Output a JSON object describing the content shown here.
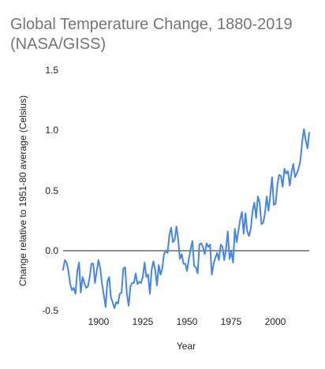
{
  "chart_data": {
    "type": "line",
    "title_line1": "Global Temperature Change, 1880-2019",
    "title_line2": "(NASA/GISS)",
    "xlabel": "Year",
    "ylabel": "Change relative to 1951-80 average (Celsius)",
    "xlim": [
      1880,
      2019
    ],
    "ylim": [
      -0.5,
      1.5
    ],
    "x_ticks": [
      "1900",
      "1925",
      "1950",
      "1975",
      "2000"
    ],
    "y_ticks": [
      "-0.5",
      "0.0",
      "0.5",
      "1.0",
      "1.5"
    ],
    "grid": false,
    "legend": "none",
    "series_color": "#4285F4",
    "series": [
      {
        "x": [
          1880,
          1881,
          1882,
          1883,
          1884,
          1885,
          1886,
          1887,
          1888,
          1889,
          1890,
          1891,
          1892,
          1893,
          1894,
          1895,
          1896,
          1897,
          1898,
          1899,
          1900,
          1901,
          1902,
          1903,
          1904,
          1905,
          1906,
          1907,
          1908,
          1909,
          1910,
          1911,
          1912,
          1913,
          1914,
          1915,
          1916,
          1917,
          1918,
          1919,
          1920,
          1921,
          1922,
          1923,
          1924,
          1925,
          1926,
          1927,
          1928,
          1929,
          1930,
          1931,
          1932,
          1933,
          1934,
          1935,
          1936,
          1937,
          1938,
          1939,
          1940,
          1941,
          1942,
          1943,
          1944,
          1945,
          1946,
          1947,
          1948,
          1949,
          1950,
          1951,
          1952,
          1953,
          1954,
          1955,
          1956,
          1957,
          1958,
          1959,
          1960,
          1961,
          1962,
          1963,
          1964,
          1965,
          1966,
          1967,
          1968,
          1969,
          1970,
          1971,
          1972,
          1973,
          1974,
          1975,
          1976,
          1977,
          1978,
          1979,
          1980,
          1981,
          1982,
          1983,
          1984,
          1985,
          1986,
          1987,
          1988,
          1989,
          1990,
          1991,
          1992,
          1993,
          1994,
          1995,
          1996,
          1997,
          1998,
          1999,
          2000,
          2001,
          2002,
          2003,
          2004,
          2005,
          2006,
          2007,
          2008,
          2009,
          2010,
          2011,
          2012,
          2013,
          2014,
          2015,
          2016,
          2017,
          2018,
          2019
        ],
        "values": [
          -0.16,
          -0.08,
          -0.1,
          -0.17,
          -0.28,
          -0.33,
          -0.31,
          -0.36,
          -0.17,
          -0.1,
          -0.35,
          -0.22,
          -0.27,
          -0.31,
          -0.3,
          -0.22,
          -0.11,
          -0.11,
          -0.27,
          -0.17,
          -0.08,
          -0.15,
          -0.28,
          -0.37,
          -0.47,
          -0.26,
          -0.22,
          -0.39,
          -0.43,
          -0.48,
          -0.43,
          -0.44,
          -0.36,
          -0.35,
          -0.15,
          -0.14,
          -0.36,
          -0.46,
          -0.3,
          -0.27,
          -0.27,
          -0.19,
          -0.28,
          -0.26,
          -0.27,
          -0.22,
          -0.1,
          -0.22,
          -0.2,
          -0.36,
          -0.16,
          -0.09,
          -0.16,
          -0.29,
          -0.12,
          -0.2,
          -0.15,
          -0.03,
          -0.0,
          -0.02,
          0.13,
          0.19,
          0.07,
          0.09,
          0.2,
          0.09,
          -0.07,
          -0.03,
          -0.11,
          -0.11,
          -0.17,
          -0.07,
          0.01,
          0.08,
          -0.13,
          -0.14,
          -0.19,
          0.05,
          0.06,
          0.03,
          -0.03,
          0.06,
          0.03,
          0.05,
          -0.2,
          -0.11,
          -0.06,
          -0.02,
          -0.08,
          0.05,
          0.03,
          -0.08,
          0.01,
          0.16,
          -0.07,
          -0.01,
          -0.1,
          0.18,
          0.07,
          0.16,
          0.26,
          0.32,
          0.14,
          0.31,
          0.16,
          0.12,
          0.18,
          0.33,
          0.4,
          0.27,
          0.45,
          0.4,
          0.22,
          0.23,
          0.31,
          0.45,
          0.33,
          0.46,
          0.61,
          0.38,
          0.39,
          0.54,
          0.63,
          0.62,
          0.53,
          0.68,
          0.64,
          0.66,
          0.54,
          0.65,
          0.72,
          0.61,
          0.64,
          0.68,
          0.75,
          0.9,
          1.01,
          0.92,
          0.85,
          0.98
        ]
      }
    ]
  }
}
